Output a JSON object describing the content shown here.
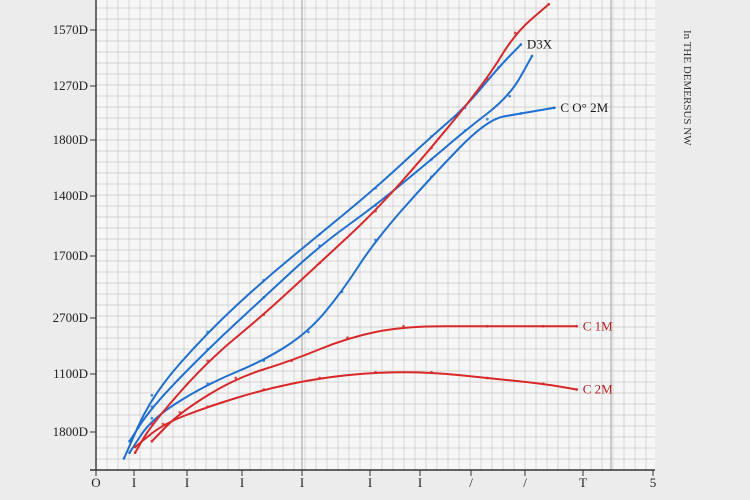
{
  "chart_data": {
    "type": "line",
    "title": "",
    "xlabel": "",
    "ylabel": "",
    "right_caption": "In THE DEMERSUS NW",
    "x_ticks": [
      "O",
      "I",
      "I",
      "I",
      "I",
      "I",
      "I",
      "/",
      "/",
      "T",
      "5"
    ],
    "y_ticks": [
      "1570D",
      "1270D",
      "1800D",
      "1400D",
      "1700D",
      "2700D",
      "1100D",
      "1800D"
    ],
    "grid": true,
    "xlim": [
      0,
      10
    ],
    "ylim": [
      0,
      8
    ],
    "series": [
      {
        "name": "D3X",
        "color": "#1f6fd1",
        "points": [
          [
            0.5,
            0.2
          ],
          [
            1,
            1.3
          ],
          [
            2,
            2.4
          ],
          [
            3,
            3.3
          ],
          [
            4,
            4.1
          ],
          [
            5,
            4.9
          ],
          [
            6,
            5.8
          ],
          [
            6.6,
            6.3
          ],
          [
            7.2,
            7.0
          ],
          [
            7.6,
            7.4
          ]
        ]
      },
      {
        "name": "",
        "color": "#1f6fd1",
        "points": [
          [
            0.6,
            0.5
          ],
          [
            1,
            1.1
          ],
          [
            2,
            2.1
          ],
          [
            3,
            3.0
          ],
          [
            4,
            3.9
          ],
          [
            5,
            4.6
          ],
          [
            6,
            5.4
          ],
          [
            6.6,
            5.9
          ],
          [
            7.4,
            6.5
          ],
          [
            7.8,
            7.2
          ]
        ]
      },
      {
        "name": "C O° 2M",
        "color": "#1f6fd1",
        "points": [
          [
            0.6,
            0.3
          ],
          [
            1,
            0.9
          ],
          [
            2,
            1.5
          ],
          [
            3,
            1.9
          ],
          [
            3.8,
            2.4
          ],
          [
            4.4,
            3.1
          ],
          [
            5,
            4.0
          ],
          [
            6,
            5.1
          ],
          [
            7,
            6.1
          ],
          [
            7.6,
            6.2
          ],
          [
            8.2,
            6.3
          ]
        ]
      },
      {
        "name": "",
        "color": "#d8282a",
        "points": [
          [
            0.7,
            0.3
          ],
          [
            1,
            0.8
          ],
          [
            2,
            1.9
          ],
          [
            3,
            2.7
          ],
          [
            4,
            3.6
          ],
          [
            5,
            4.5
          ],
          [
            6,
            5.6
          ],
          [
            7,
            6.8
          ],
          [
            7.5,
            7.6
          ],
          [
            8.1,
            8.1
          ]
        ]
      },
      {
        "name": "C 1M",
        "color": "#d8282a",
        "points": [
          [
            1.0,
            0.5
          ],
          [
            1.5,
            1.0
          ],
          [
            2.5,
            1.6
          ],
          [
            3.5,
            1.9
          ],
          [
            4.5,
            2.3
          ],
          [
            5.5,
            2.5
          ],
          [
            7,
            2.5
          ],
          [
            8,
            2.5
          ],
          [
            8.6,
            2.5
          ]
        ]
      },
      {
        "name": "C 2M",
        "color": "#d8282a",
        "points": [
          [
            0.7,
            0.4
          ],
          [
            1.2,
            0.8
          ],
          [
            2,
            1.1
          ],
          [
            3,
            1.4
          ],
          [
            4,
            1.6
          ],
          [
            5,
            1.7
          ],
          [
            6,
            1.7
          ],
          [
            7,
            1.6
          ],
          [
            8,
            1.5
          ],
          [
            8.6,
            1.4
          ]
        ]
      }
    ]
  }
}
